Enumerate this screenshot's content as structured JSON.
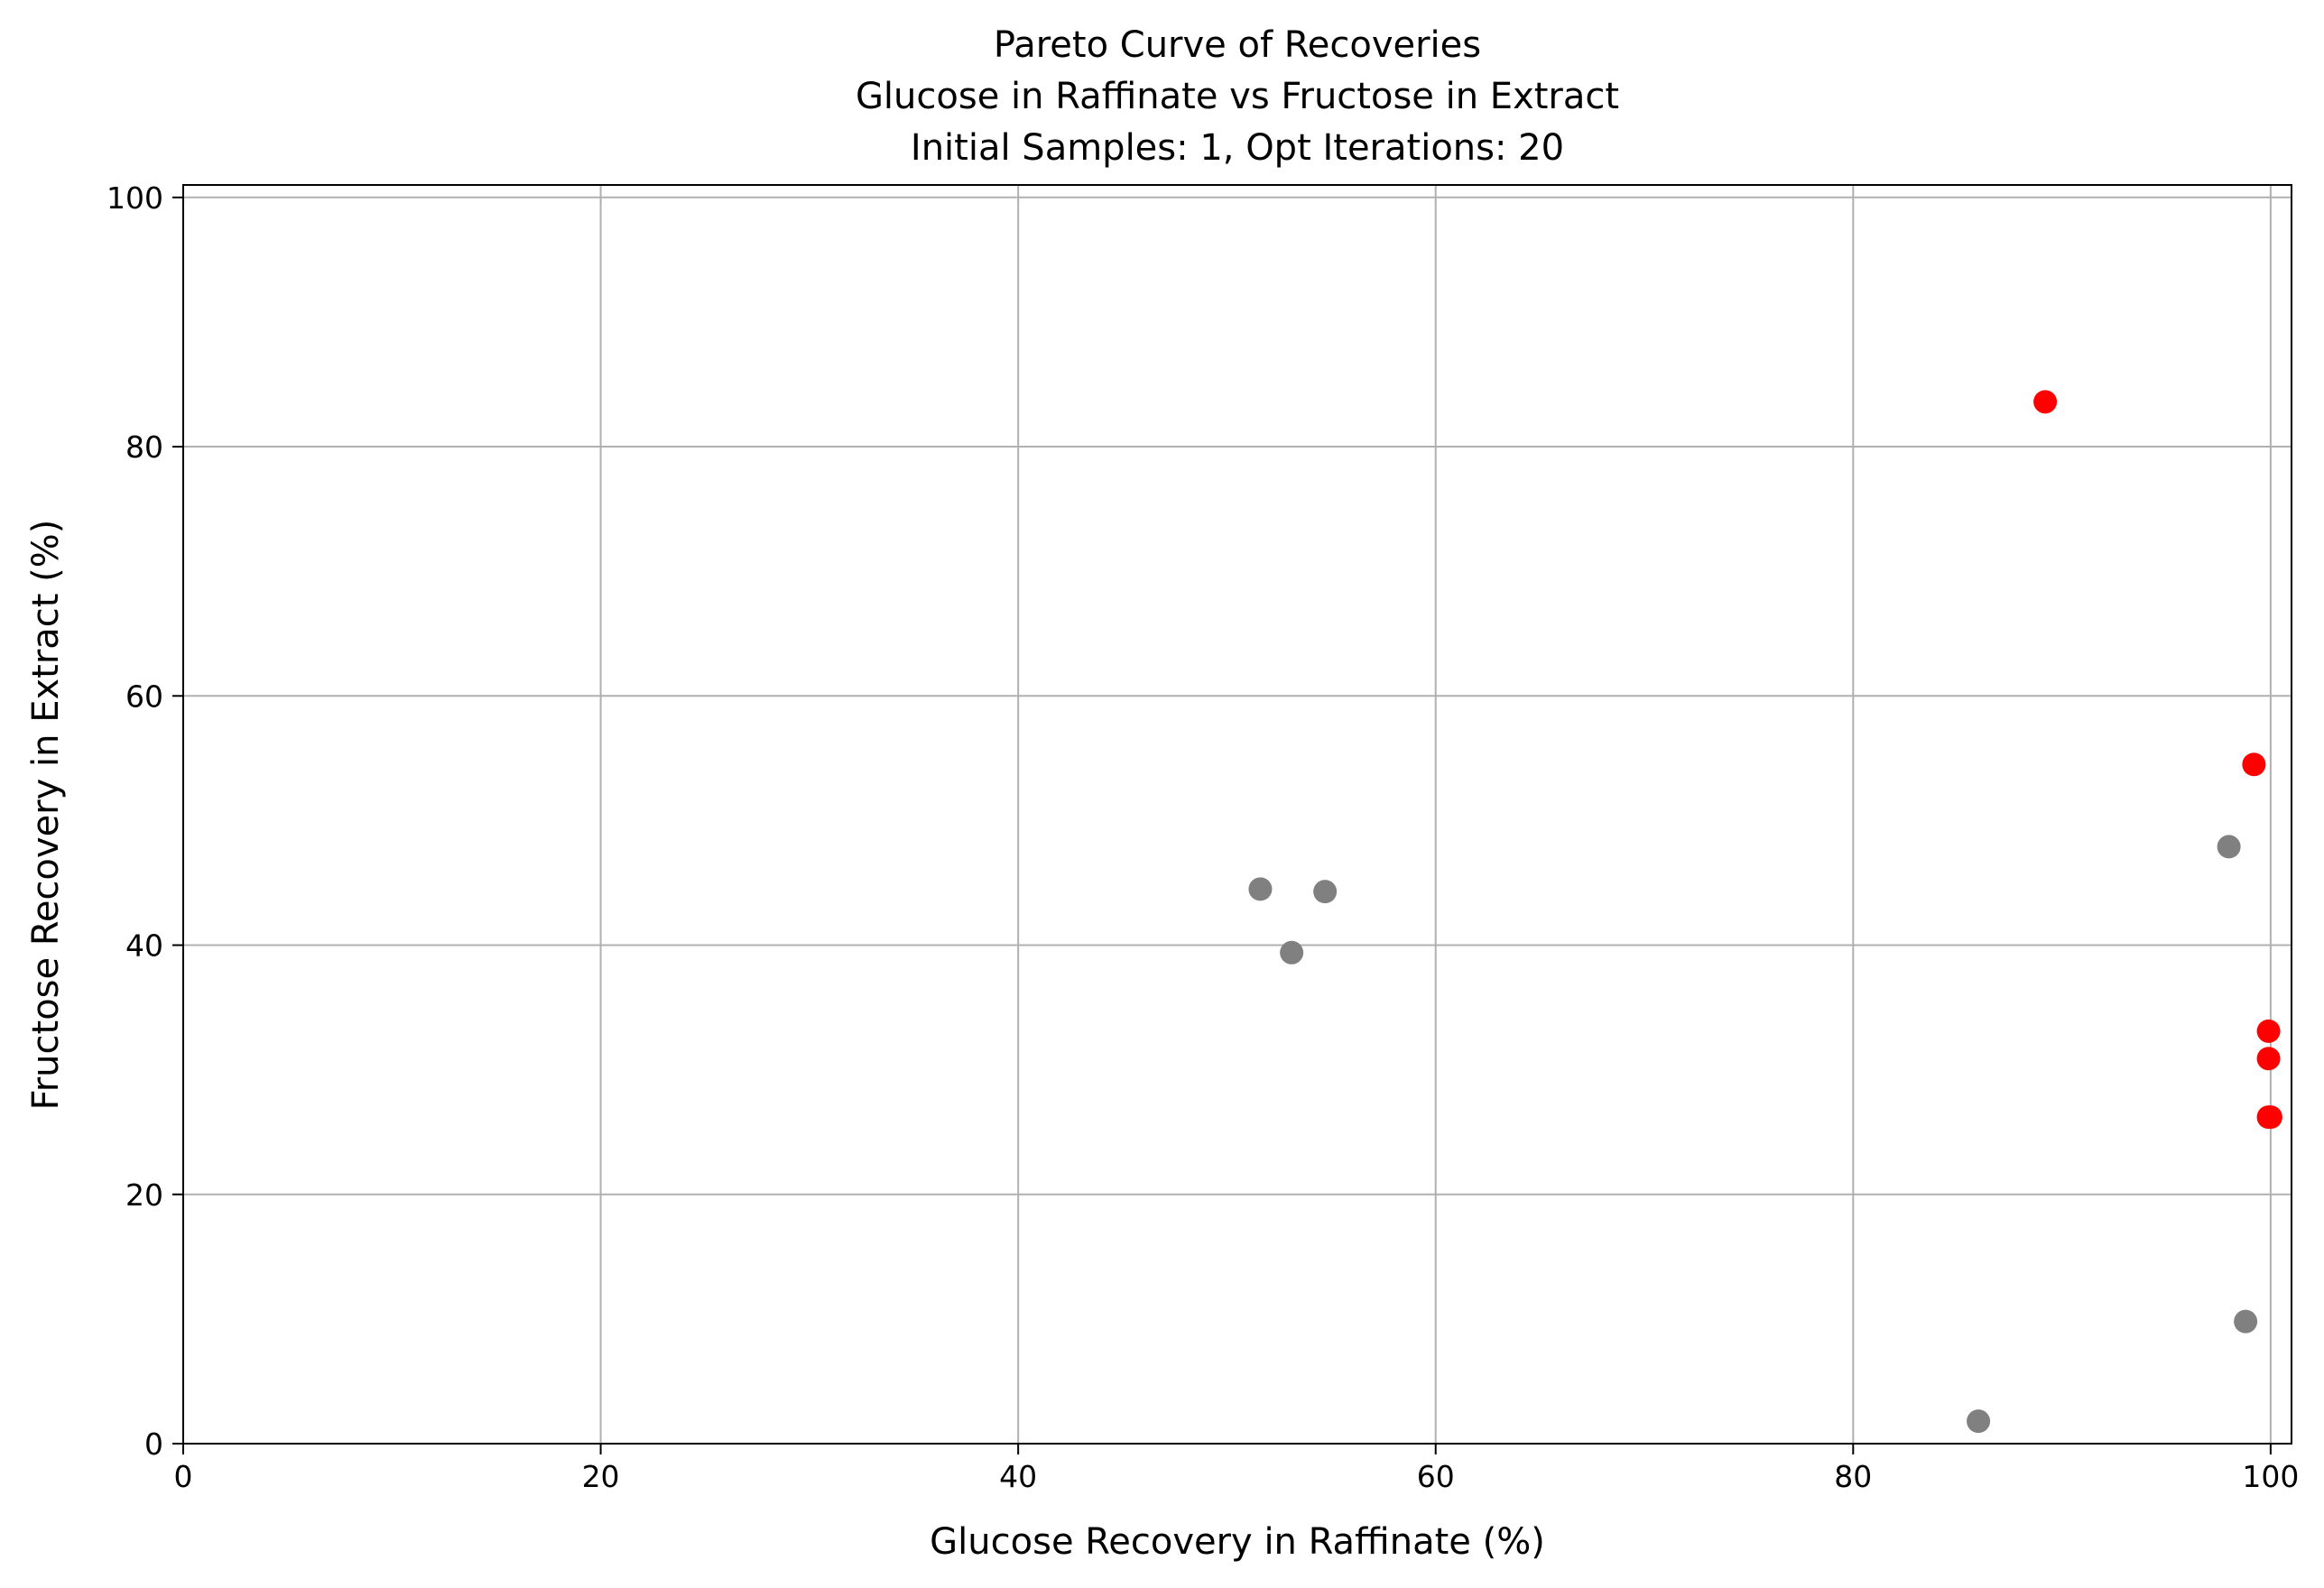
{
  "chart_data": {
    "type": "scatter",
    "title_lines": [
      "Pareto Curve of Recoveries",
      "Glucose in Raffinate vs Fructose in Extract",
      "Initial Samples: 1, Opt Iterations: 20"
    ],
    "xlabel": "Glucose Recovery in Raffinate (%)",
    "ylabel": "Fructose Recovery in Extract (%)",
    "xlim": [
      0,
      101
    ],
    "ylim": [
      0,
      101
    ],
    "x_ticks": [
      0,
      20,
      40,
      60,
      80,
      100
    ],
    "y_ticks": [
      0,
      20,
      40,
      60,
      80,
      100
    ],
    "x_tick_labels": [
      "0",
      "20",
      "40",
      "60",
      "80",
      "100"
    ],
    "y_tick_labels": [
      "0",
      "20",
      "40",
      "60",
      "80",
      "100"
    ],
    "grid": true,
    "legend": "none",
    "colors": {
      "pareto": "#ff0000",
      "other": "#808080",
      "grid": "#b0b0b0",
      "axes": "#000000"
    },
    "series": [
      {
        "role": "pareto",
        "color": "#ff0000",
        "points": [
          {
            "x": 89.2,
            "y": 83.6
          },
          {
            "x": 99.2,
            "y": 54.5
          },
          {
            "x": 99.9,
            "y": 33.1
          },
          {
            "x": 99.9,
            "y": 30.9
          },
          {
            "x": 100.0,
            "y": 26.2
          },
          {
            "x": 99.9,
            "y": 26.2
          }
        ]
      },
      {
        "role": "other",
        "color": "#808080",
        "points": [
          {
            "x": 51.6,
            "y": 44.5
          },
          {
            "x": 54.7,
            "y": 44.3
          },
          {
            "x": 53.1,
            "y": 39.4
          },
          {
            "x": 98.0,
            "y": 47.9
          },
          {
            "x": 98.8,
            "y": 9.8
          },
          {
            "x": 86.0,
            "y": 1.8
          }
        ]
      }
    ]
  }
}
